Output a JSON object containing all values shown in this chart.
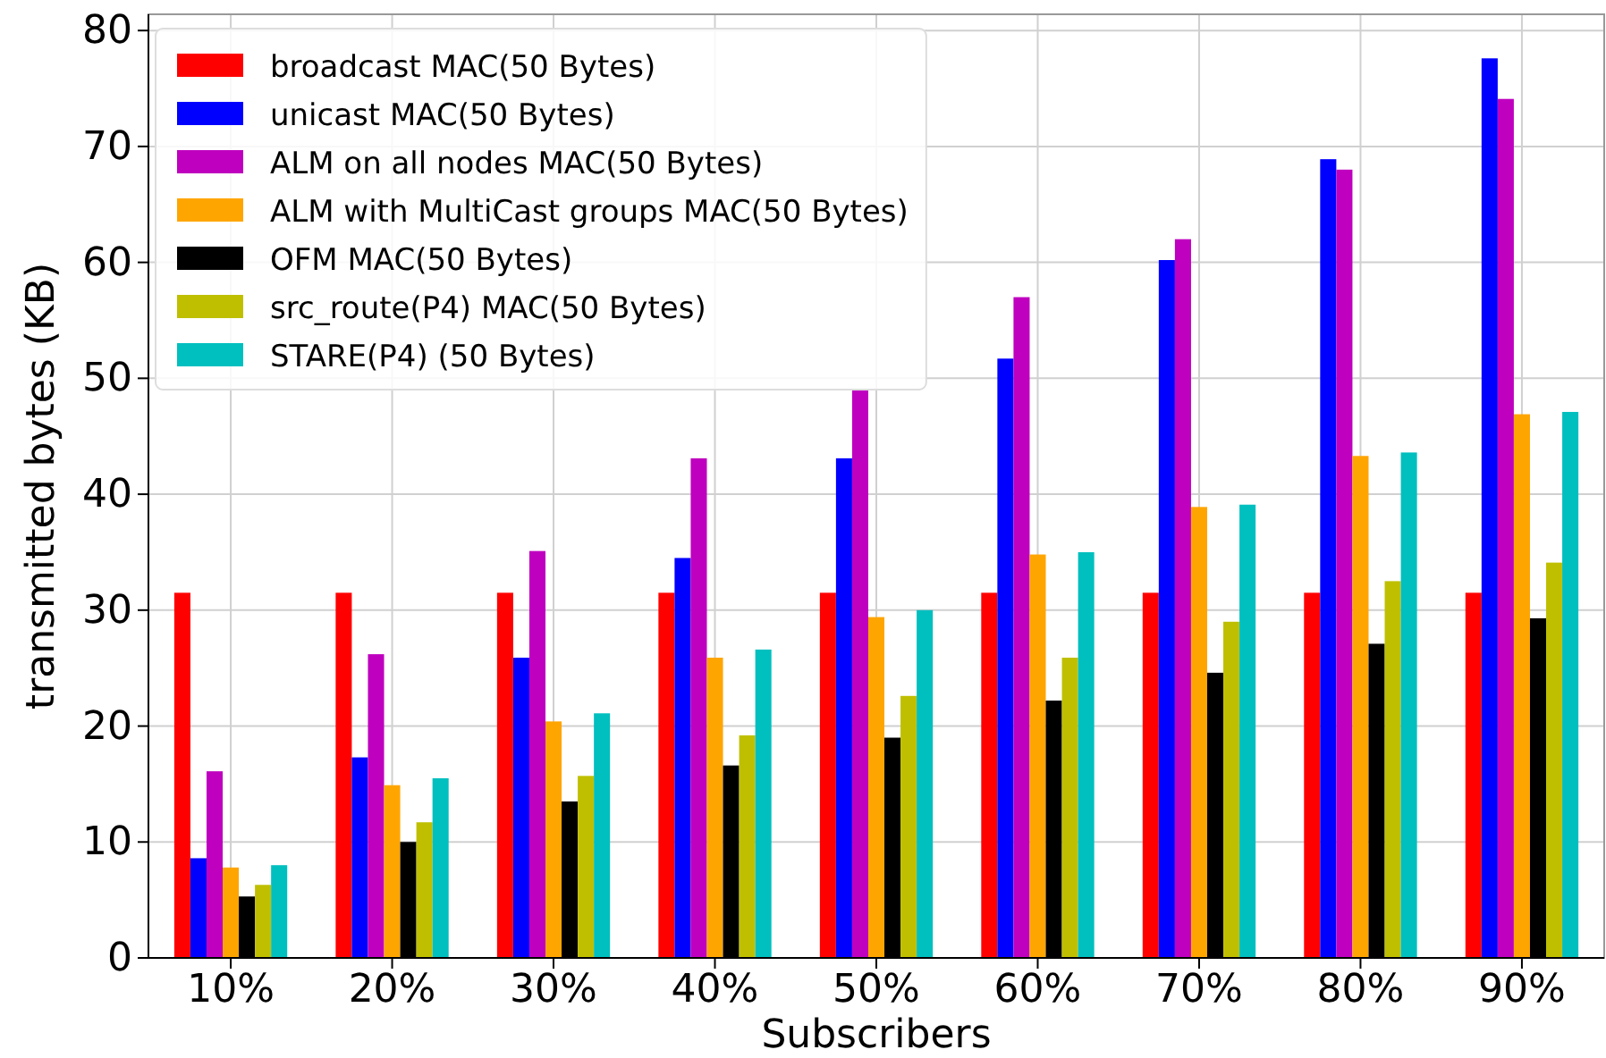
{
  "chart_data": {
    "type": "bar",
    "xlabel": "Subscribers",
    "ylabel": "transmitted bytes (KB)",
    "categories": [
      "10%",
      "20%",
      "30%",
      "40%",
      "50%",
      "60%",
      "70%",
      "80%",
      "90%"
    ],
    "series": [
      {
        "name": "broadcast MAC(50 Bytes)",
        "color": "#ff0000",
        "values": [
          31.5,
          31.5,
          31.5,
          31.5,
          31.5,
          31.5,
          31.5,
          31.5,
          31.5
        ]
      },
      {
        "name": "unicast MAC(50 Bytes)",
        "color": "#0000ff",
        "values": [
          8.6,
          17.3,
          25.9,
          34.5,
          43.1,
          51.7,
          60.2,
          68.9,
          77.6
        ]
      },
      {
        "name": "ALM on all nodes MAC(50 Bytes)",
        "color": "#bf00bf",
        "values": [
          16.1,
          26.2,
          35.1,
          43.1,
          49,
          57,
          62,
          68,
          74.1
        ]
      },
      {
        "name": "ALM with MultiCast groups MAC(50 Bytes)",
        "color": "#ffa500",
        "values": [
          7.8,
          14.9,
          20.4,
          25.9,
          29.4,
          34.8,
          38.9,
          43.3,
          46.9
        ]
      },
      {
        "name": "OFM MAC(50 Bytes)",
        "color": "#000000",
        "values": [
          5.3,
          10,
          13.5,
          16.6,
          19,
          22.2,
          24.6,
          27.1,
          29.3
        ]
      },
      {
        "name": "src_route(P4) MAC(50 Bytes)",
        "color": "#bfbf00",
        "values": [
          6.3,
          11.7,
          15.7,
          19.2,
          22.6,
          25.9,
          29,
          32.5,
          34.1
        ]
      },
      {
        "name": "STARE(P4) (50 Bytes)",
        "color": "#00bfbf",
        "values": [
          8,
          15.5,
          21.1,
          26.6,
          30,
          35,
          39.1,
          43.6,
          47.1
        ]
      }
    ],
    "ylim": [
      0,
      81.4
    ],
    "yticks": [
      0,
      10,
      20,
      30,
      40,
      50,
      60,
      70,
      80
    ],
    "grid": true,
    "legend": "top left"
  }
}
